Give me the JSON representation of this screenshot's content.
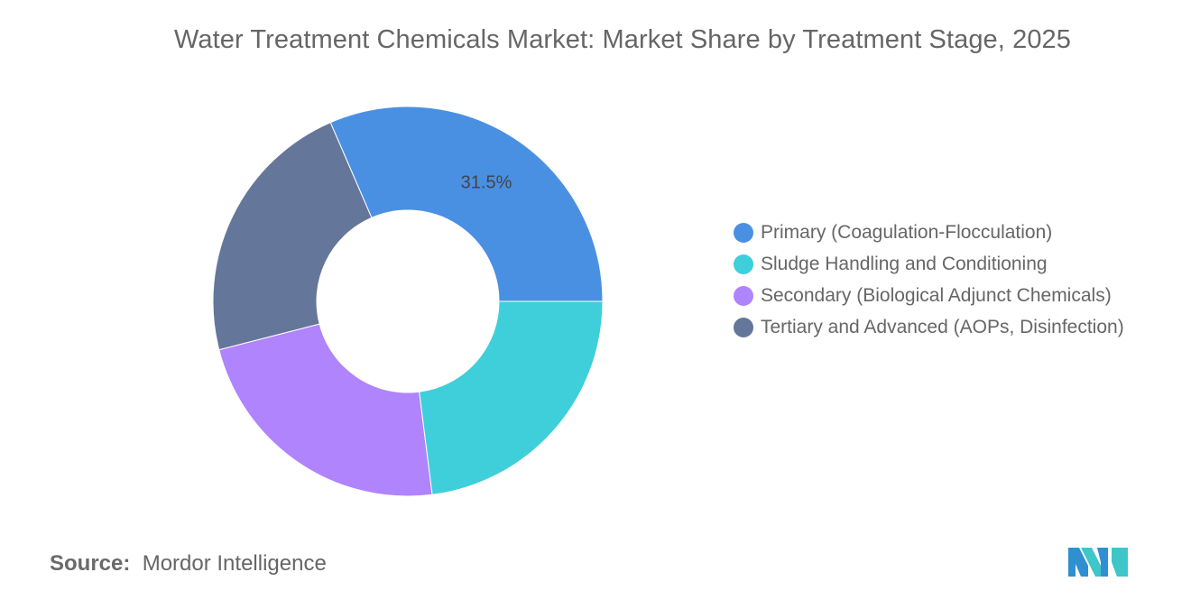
{
  "title": "Water Treatment Chemicals Market: Market Share by Treatment Stage, 2025",
  "chart_data": {
    "type": "pie",
    "title": "Water Treatment Chemicals Market: Market Share by Treatment Stage, 2025",
    "categories": [
      "Primary (Coagulation-Flocculation)",
      "Tertiary and Advanced (AOPs, Disinfection)",
      "Secondary (Biological Adjunct Chemicals)",
      "Sludge Handling and Conditioning"
    ],
    "values": [
      31.5,
      22.5,
      23,
      23
    ],
    "colors": [
      "#4a90e2",
      "#647699",
      "#b084fc",
      "#3ecfda"
    ],
    "data_labels": [
      "31.5%",
      "",
      "",
      ""
    ],
    "legend_position": "right"
  },
  "legend": [
    {
      "label": "Primary (Coagulation-Flocculation)",
      "color": "#4a90e2"
    },
    {
      "label": "Sludge Handling and Conditioning",
      "color": "#3ecfda"
    },
    {
      "label": "Secondary (Biological Adjunct Chemicals)",
      "color": "#b084fc"
    },
    {
      "label": "Tertiary and Advanced (AOPs, Disinfection)",
      "color": "#647699"
    }
  ],
  "source": {
    "label": "Source:",
    "value": "Mordor Intelligence"
  },
  "logo_icon": "mordor-intelligence-logo"
}
